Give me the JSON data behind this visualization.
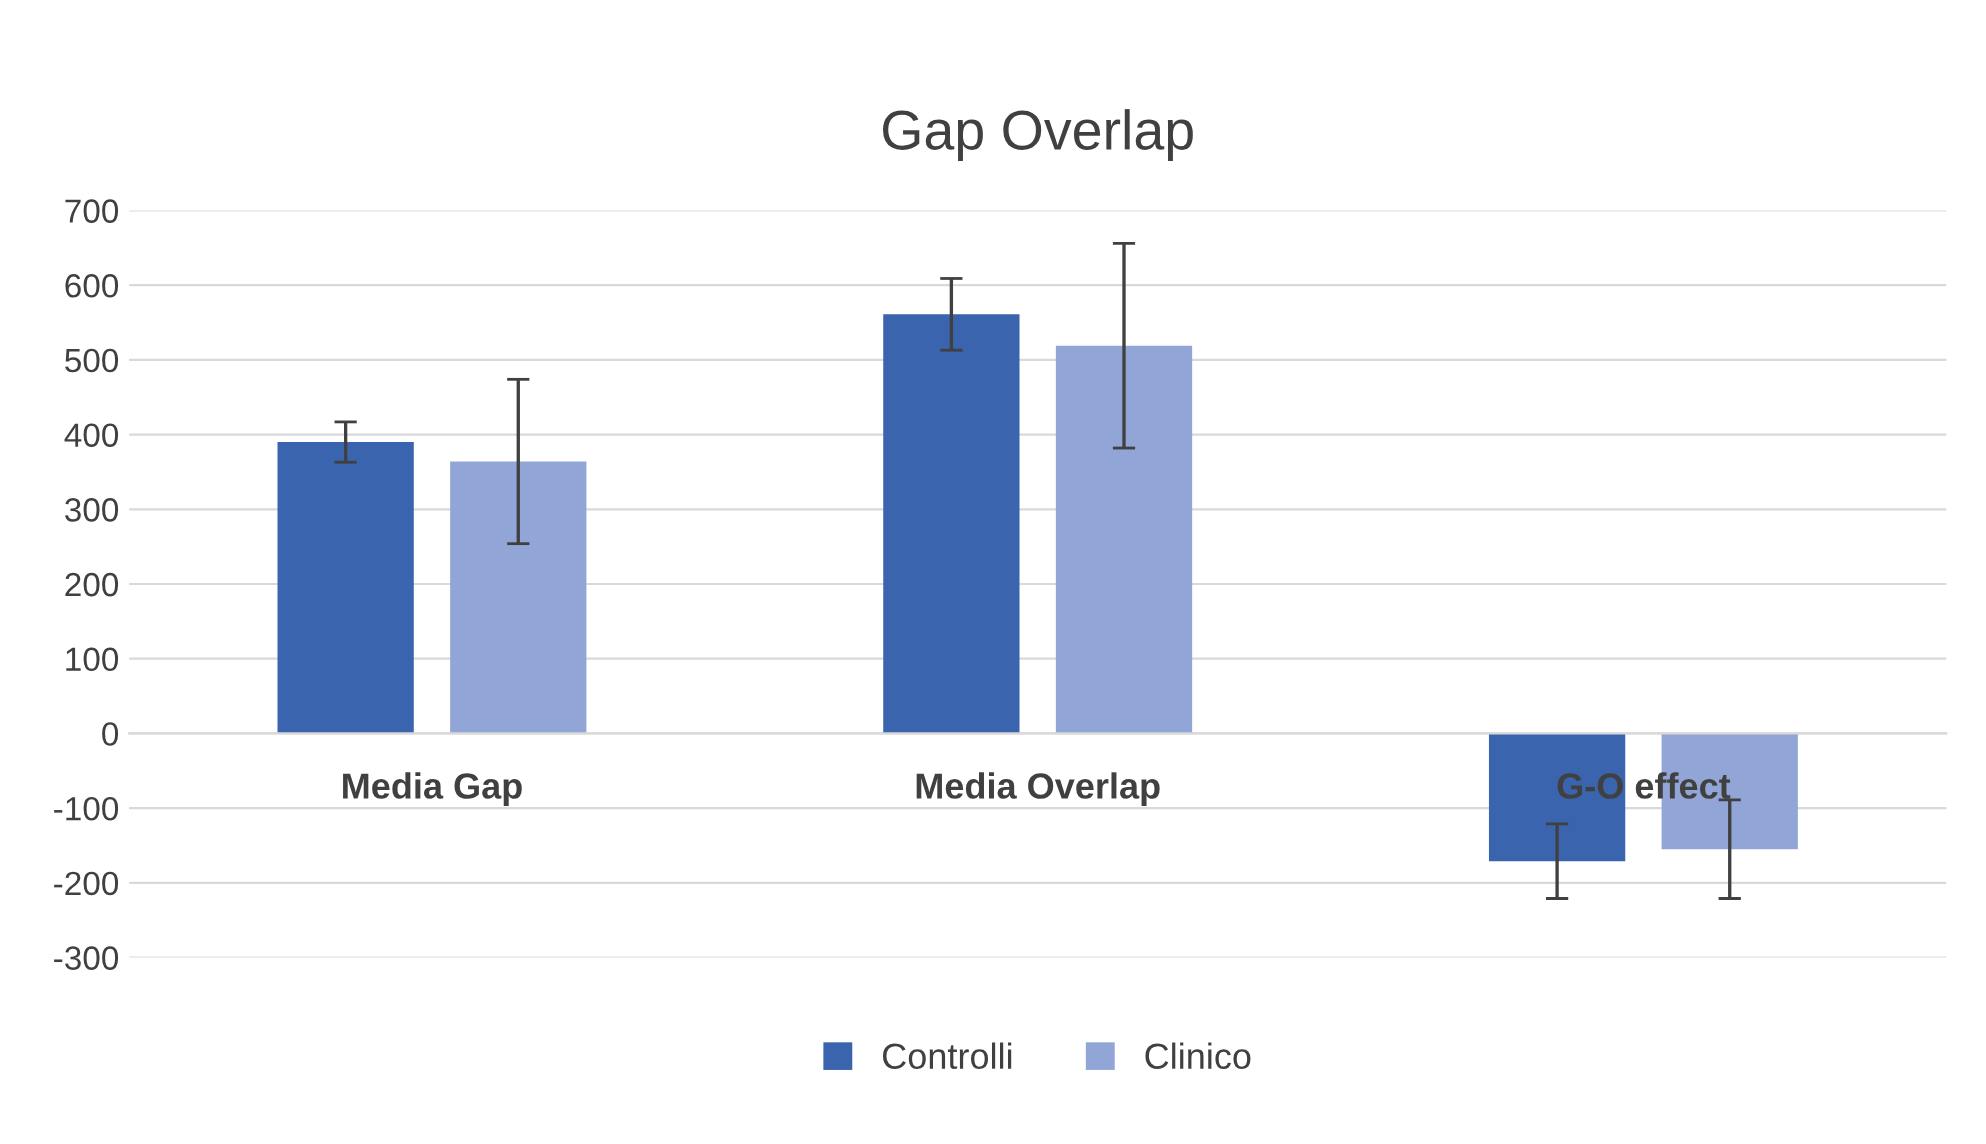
{
  "chart_data": {
    "type": "bar",
    "title": "Gap Overlap",
    "categories": [
      "Media Gap",
      "Media Overlap",
      "G-O effect"
    ],
    "series": [
      {
        "name": "Controlli",
        "color": "#3a64ad",
        "values": [
          390,
          561,
          -171
        ],
        "errors": [
          27,
          48,
          50
        ]
      },
      {
        "name": "Clinico",
        "color": "#91a6d6",
        "values": [
          364,
          519,
          -155
        ],
        "errors": [
          110,
          137,
          66
        ]
      }
    ],
    "ylim": [
      -300,
      700
    ],
    "yticks": [
      -300,
      -200,
      -100,
      0,
      100,
      200,
      300,
      400,
      500,
      600,
      700
    ],
    "grid": "y",
    "legend": "bottom"
  }
}
